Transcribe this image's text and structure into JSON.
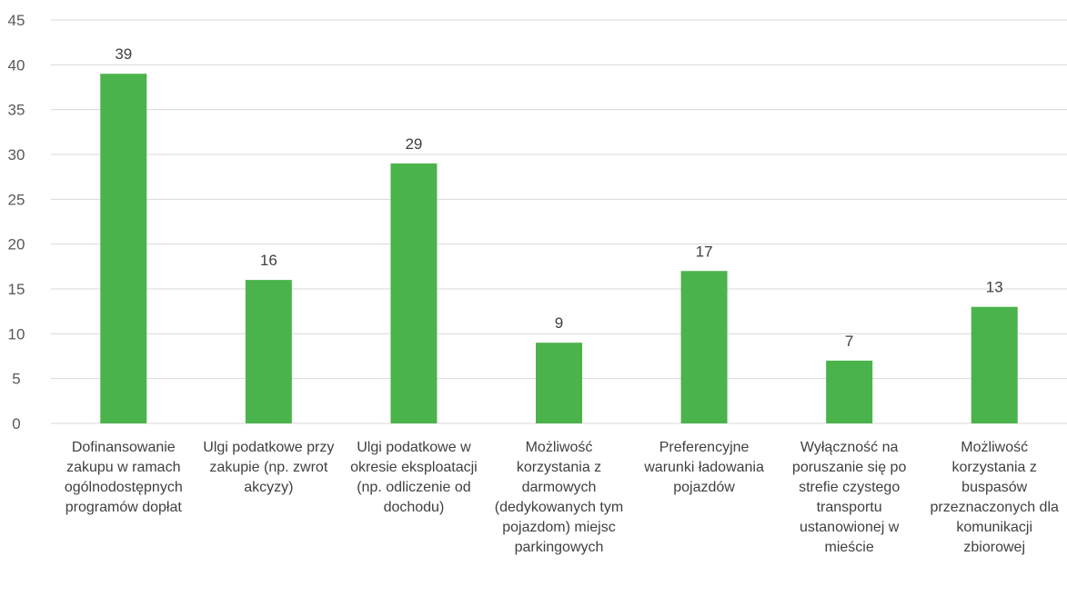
{
  "chart_data": {
    "type": "bar",
    "categories": [
      "Dofinansowanie zakupu w ramach ogólnodostępnych programów dopłat",
      "Ulgi podatkowe przy zakupie (np. zwrot akcyzy)",
      "Ulgi podatkowe w okresie eksploatacji (np. odliczenie od dochodu)",
      "Możliwość korzystania z darmowych (dedykowanych tym pojazdom) miejsc parkingowych",
      "Preferencyjne warunki ładowania pojazdów",
      "Wyłączność na poruszanie się po strefie czystego transportu ustanowionej w mieście",
      "Możliwość korzystania z buspasów przeznaczonych dla komunikacji zbiorowej"
    ],
    "values": [
      39,
      16,
      29,
      9,
      17,
      7,
      13
    ],
    "ylim": [
      0,
      45
    ],
    "yticks": [
      0,
      5,
      10,
      15,
      20,
      25,
      30,
      35,
      40,
      45
    ],
    "grid": true,
    "data_labels": true,
    "title": "",
    "xlabel": "",
    "ylabel": "",
    "colors": {
      "bar": "#4bb34b",
      "grid": "#d9d9d9",
      "text": "#404040"
    }
  }
}
